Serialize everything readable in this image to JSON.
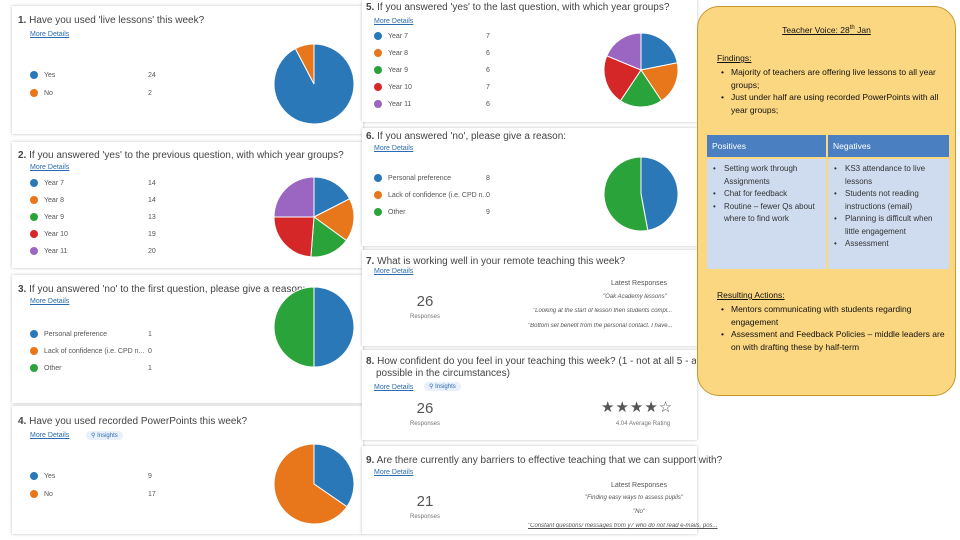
{
  "q1": {
    "num": "1.",
    "title": "Have you used 'live lessons' this week?",
    "more": "More Details",
    "legend": [
      {
        "label": "Yes",
        "value": "24",
        "color": "#2b78b8"
      },
      {
        "label": "No",
        "value": "2",
        "color": "#e8761a"
      }
    ]
  },
  "q2": {
    "num": "2.",
    "title": "If you answered 'yes' to the previous question, with which year groups?",
    "more": "More Details",
    "legend": [
      {
        "label": "Year 7",
        "value": "14",
        "color": "#2b78b8"
      },
      {
        "label": "Year 8",
        "value": "14",
        "color": "#e8761a"
      },
      {
        "label": "Year 9",
        "value": "13",
        "color": "#2aa33a"
      },
      {
        "label": "Year 10",
        "value": "19",
        "color": "#d62728"
      },
      {
        "label": "Year 11",
        "value": "20",
        "color": "#9b65c2"
      }
    ]
  },
  "q3": {
    "num": "3.",
    "title": "If you answered 'no' to the first question, please give a reason:",
    "more": "More Details",
    "legend": [
      {
        "label": "Personal preference",
        "value": "1",
        "color": "#2b78b8"
      },
      {
        "label": "Lack of confidence (i.e. CPD n...",
        "value": "0",
        "color": "#e8761a"
      },
      {
        "label": "Other",
        "value": "1",
        "color": "#2aa33a"
      }
    ]
  },
  "q4": {
    "num": "4.",
    "title": "Have you used recorded PowerPoints this week?",
    "more": "More Details",
    "insights": "Insights",
    "legend": [
      {
        "label": "Yes",
        "value": "9",
        "color": "#2b78b8"
      },
      {
        "label": "No",
        "value": "17",
        "color": "#e8761a"
      }
    ]
  },
  "q5": {
    "num": "5.",
    "title": "If you answered 'yes' to the last question, with which year groups?",
    "more": "More Details",
    "legend": [
      {
        "label": "Year 7",
        "value": "7",
        "color": "#2b78b8"
      },
      {
        "label": "Year 8",
        "value": "6",
        "color": "#e8761a"
      },
      {
        "label": "Year 9",
        "value": "6",
        "color": "#2aa33a"
      },
      {
        "label": "Year 10",
        "value": "7",
        "color": "#d62728"
      },
      {
        "label": "Year 11",
        "value": "6",
        "color": "#9b65c2"
      }
    ]
  },
  "q6": {
    "num": "6.",
    "title": "If you answered 'no', please give a reason:",
    "more": "More Details",
    "legend": [
      {
        "label": "Personal preference",
        "value": "8",
        "color": "#2b78b8"
      },
      {
        "label": "Lack of confidence (i.e. CPD n...",
        "value": "0",
        "color": "#e8761a"
      },
      {
        "label": "Other",
        "value": "9",
        "color": "#2aa33a"
      }
    ]
  },
  "q7": {
    "num": "7.",
    "title": "What is working well in your remote teaching this week?",
    "more": "More Details",
    "count": "26",
    "count_label": "Responses",
    "latest": "Latest Responses",
    "responses": [
      "\"Oak Academy lessons\"",
      "\"Looking at the start of lesson then students compl...",
      "\"Bottom set benefit from the personal contact. I have..."
    ]
  },
  "q8": {
    "num": "8.",
    "title": "How confident do you feel in your teaching this week? (1 - not at all 5 - as confident as",
    "title2": "possible in the circumstances)",
    "more": "More Details",
    "insights": "Insights",
    "count": "26",
    "count_label": "Responses",
    "rating": "4.04",
    "rating_label": "Average Rating",
    "stars": "★★★★☆"
  },
  "q9": {
    "num": "9.",
    "title": "Are there currently any barriers to effective teaching that we can support with?",
    "more": "More Details",
    "count": "21",
    "count_label": "Responses",
    "latest": "Latest Responses",
    "responses": [
      "\"Finding easy ways to assess pupils\"",
      "\"No\"",
      "\"Constant questions/ messages from y7 who do not read e-mails, pos..."
    ]
  },
  "teacher_voice": {
    "title": "Teacher Voice: 28",
    "title_sup": "th",
    "title_end": " Jan",
    "findings_label": "Findings:",
    "findings": [
      "Majority of teachers are offering live lessons to all year groups;",
      "Just under half are using recorded PowerPoints with all year groups;"
    ],
    "positives_header": "Positives",
    "negatives_header": "Negatives",
    "positives": [
      "Setting work through Assignments",
      "Chat for feedback",
      "Routine – fewer Qs about where to find work"
    ],
    "negatives": [
      "KS3 attendance to live lessons",
      "Students not reading instructions (email)",
      "Planning is difficult when little engagement",
      "Assessment"
    ],
    "actions_label": "Resulting Actions:",
    "actions": [
      "Mentors communicating with students regarding engagement",
      "Assessment and Feedback Policies – middle leaders are on with drafting these by half-term"
    ]
  },
  "chart_data": [
    {
      "type": "pie",
      "title": "Have you used 'live lessons' this week?",
      "categories": [
        "Yes",
        "No"
      ],
      "values": [
        24,
        2
      ]
    },
    {
      "type": "pie",
      "title": "If you answered 'yes' to the previous question, with which year groups?",
      "categories": [
        "Year 7",
        "Year 8",
        "Year 9",
        "Year 10",
        "Year 11"
      ],
      "values": [
        14,
        14,
        13,
        19,
        20
      ]
    },
    {
      "type": "pie",
      "title": "If you answered 'no' to the first question, please give a reason:",
      "categories": [
        "Personal preference",
        "Lack of confidence (i.e. CPD n...",
        "Other"
      ],
      "values": [
        1,
        0,
        1
      ]
    },
    {
      "type": "pie",
      "title": "Have you used recorded PowerPoints this week?",
      "categories": [
        "Yes",
        "No"
      ],
      "values": [
        9,
        17
      ]
    },
    {
      "type": "pie",
      "title": "If you answered 'yes' to the last question, with which year groups?",
      "categories": [
        "Year 7",
        "Year 8",
        "Year 9",
        "Year 10",
        "Year 11"
      ],
      "values": [
        7,
        6,
        6,
        7,
        6
      ]
    },
    {
      "type": "pie",
      "title": "If you answered 'no', please give a reason:",
      "categories": [
        "Personal preference",
        "Lack of confidence (i.e. CPD n...",
        "Other"
      ],
      "values": [
        8,
        0,
        9
      ]
    }
  ]
}
